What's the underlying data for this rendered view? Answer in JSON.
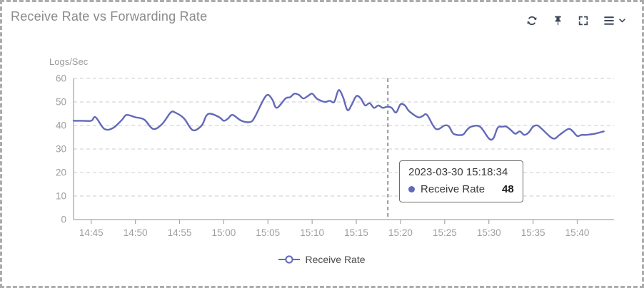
{
  "header": {
    "title": "Receive Rate vs Forwarding Rate",
    "toolbar": {
      "icons": [
        "refresh-icon",
        "pin-icon",
        "fullscreen-icon",
        "menu-icon",
        "chevron-down-icon"
      ]
    }
  },
  "colors": {
    "series": "#6269b8",
    "icon": "#3d4657",
    "grid": "#cbcbcb",
    "axis": "#a6a6a6",
    "tick_label": "#9e9e9e",
    "title_text": "#8a8a8a",
    "crosshair": "#444444",
    "panel_border": "#ababab"
  },
  "tooltip": {
    "timestamp": "2023-03-30 15:18:34",
    "series_label": "Receive Rate",
    "value": "48",
    "dot_color": "#6269b8"
  },
  "legend": {
    "position": "bottom-center",
    "items": [
      {
        "label": "Receive Rate",
        "color": "#6269b8",
        "marker": "line-circle"
      }
    ]
  },
  "chart_data": {
    "type": "line",
    "title": "Receive Rate vs Forwarding Rate",
    "xlabel": "",
    "ylabel": "Logs/Sec",
    "ylim": [
      0,
      60
    ],
    "y_ticks": [
      0,
      10,
      20,
      30,
      40,
      50,
      60
    ],
    "x_ticks": [
      "14:45",
      "14:50",
      "14:55",
      "15:00",
      "15:05",
      "15:10",
      "15:15",
      "15:20",
      "15:25",
      "15:30",
      "15:35",
      "15:40"
    ],
    "x_domain": [
      "14:43",
      "15:44"
    ],
    "grid": "horizontal-dashed",
    "legend_position": "bottom-center",
    "crosshair_time": "15:18:34",
    "highlight_point": {
      "time": "15:18:34",
      "value": 48
    },
    "series": [
      {
        "name": "Receive Rate",
        "color": "#6269b8",
        "points": [
          [
            "14:43",
            42
          ],
          [
            "14:44",
            42
          ],
          [
            "14:45",
            42
          ],
          [
            "14:45:30",
            43.5
          ],
          [
            "14:46:30",
            38.5
          ],
          [
            "14:47:30",
            39
          ],
          [
            "14:48:30",
            42.5
          ],
          [
            "14:49",
            44.5
          ],
          [
            "14:50",
            43.5
          ],
          [
            "14:51",
            42.5
          ],
          [
            "14:52",
            38.5
          ],
          [
            "14:53",
            40.5
          ],
          [
            "14:54",
            45.5
          ],
          [
            "14:54:30",
            45.5
          ],
          [
            "14:55:30",
            43
          ],
          [
            "14:56:30",
            38
          ],
          [
            "14:57:30",
            40
          ],
          [
            "14:58",
            44
          ],
          [
            "14:58:30",
            45
          ],
          [
            "14:59:30",
            43.5
          ],
          [
            "15:00",
            42
          ],
          [
            "15:00:30",
            43
          ],
          [
            "15:01",
            44.5
          ],
          [
            "15:02",
            42
          ],
          [
            "15:03",
            41.5
          ],
          [
            "15:03:30",
            43.5
          ],
          [
            "15:04:30",
            51
          ],
          [
            "15:05",
            53
          ],
          [
            "15:05:30",
            51
          ],
          [
            "15:06",
            47.5
          ],
          [
            "15:07",
            51.5
          ],
          [
            "15:07:30",
            52
          ],
          [
            "15:08",
            53.5
          ],
          [
            "15:08:30",
            53
          ],
          [
            "15:09",
            51.5
          ],
          [
            "15:09:30",
            52.5
          ],
          [
            "15:10",
            53.5
          ],
          [
            "15:10:30",
            51.5
          ],
          [
            "15:11",
            50.5
          ],
          [
            "15:11:30",
            50
          ],
          [
            "15:12",
            50.5
          ],
          [
            "15:12:30",
            50
          ],
          [
            "15:13",
            55
          ],
          [
            "15:13:30",
            52
          ],
          [
            "15:14",
            46.5
          ],
          [
            "15:14:30",
            49
          ],
          [
            "15:15",
            52.5
          ],
          [
            "15:15:30",
            51.5
          ],
          [
            "15:16",
            48.5
          ],
          [
            "15:16:30",
            49.5
          ],
          [
            "15:17",
            47.5
          ],
          [
            "15:17:30",
            48.5
          ],
          [
            "15:18",
            47.5
          ],
          [
            "15:18:34",
            48
          ],
          [
            "15:19",
            47.5
          ],
          [
            "15:19:30",
            45.5
          ],
          [
            "15:20",
            49
          ],
          [
            "15:20:30",
            48.5
          ],
          [
            "15:21",
            46
          ],
          [
            "15:22",
            43.5
          ],
          [
            "15:22:30",
            44
          ],
          [
            "15:23",
            44.5
          ],
          [
            "15:24",
            38.5
          ],
          [
            "15:25",
            40
          ],
          [
            "15:25:30",
            39.5
          ],
          [
            "15:26",
            36.5
          ],
          [
            "15:27",
            36
          ],
          [
            "15:27:30",
            38
          ],
          [
            "15:28",
            39.5
          ],
          [
            "15:29",
            39.5
          ],
          [
            "15:30",
            34.5
          ],
          [
            "15:30:30",
            34.5
          ],
          [
            "15:31",
            39
          ],
          [
            "15:31:30",
            39.5
          ],
          [
            "15:32",
            39.5
          ],
          [
            "15:32:30",
            38
          ],
          [
            "15:33",
            36.5
          ],
          [
            "15:33:30",
            37.5
          ],
          [
            "15:34",
            36
          ],
          [
            "15:34:30",
            37
          ],
          [
            "15:35",
            39.5
          ],
          [
            "15:35:30",
            40
          ],
          [
            "15:36",
            38.5
          ],
          [
            "15:37",
            35
          ],
          [
            "15:37:30",
            34.5
          ],
          [
            "15:38",
            36
          ],
          [
            "15:39",
            38.5
          ],
          [
            "15:39:30",
            37.5
          ],
          [
            "15:40",
            35.5
          ],
          [
            "15:40:30",
            36
          ],
          [
            "15:41",
            36
          ],
          [
            "15:42",
            36.5
          ],
          [
            "15:43",
            37.5
          ]
        ]
      }
    ]
  }
}
